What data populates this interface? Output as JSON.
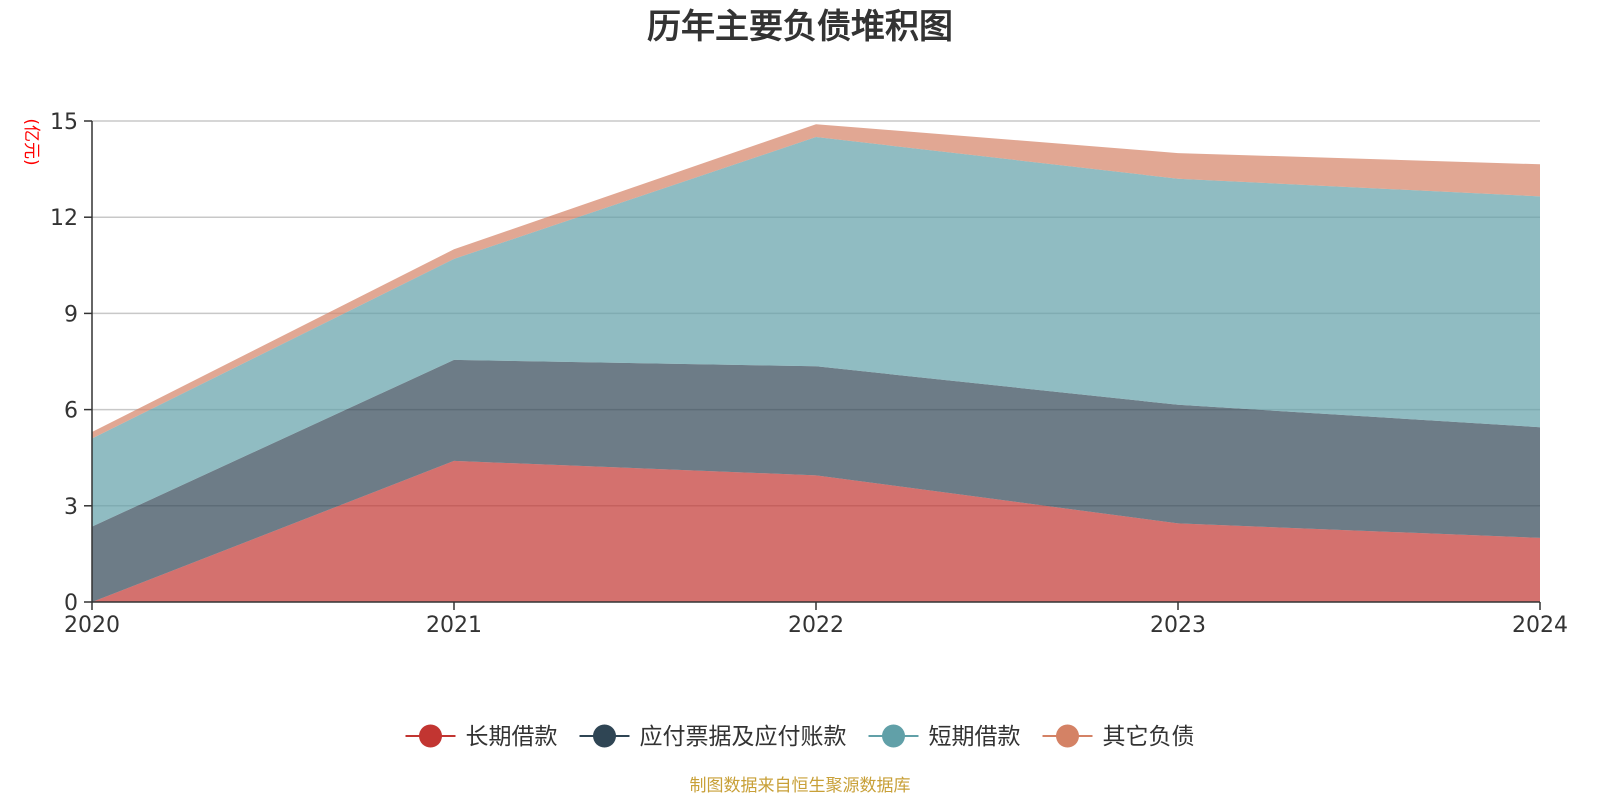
{
  "chart_data": {
    "type": "area",
    "stacked": true,
    "title": "历年主要负债堆积图",
    "ylabel": "亿元",
    "xlabel": "",
    "categories": [
      "2020",
      "2021",
      "2022",
      "2023",
      "2024"
    ],
    "ylim": [
      0,
      15
    ],
    "yticks": [
      0,
      3,
      6,
      9,
      12,
      15
    ],
    "grid": true,
    "legend_position": "bottom",
    "series": [
      {
        "name": "长期借款",
        "values": [
          0.0,
          4.4,
          3.95,
          2.45,
          2.0
        ],
        "color": "#c23531"
      },
      {
        "name": "应付票据及应付账款",
        "values": [
          2.35,
          3.15,
          3.4,
          3.7,
          3.45
        ],
        "color": "#2f4554"
      },
      {
        "name": "短期借款",
        "values": [
          2.75,
          3.15,
          7.15,
          7.05,
          7.2
        ],
        "color": "#61a0a8"
      },
      {
        "name": "其它负债",
        "values": [
          0.2,
          0.3,
          0.4,
          0.8,
          1.0
        ],
        "color": "#d48265"
      }
    ]
  },
  "source_text": "制图数据来自恒生聚源数据库"
}
